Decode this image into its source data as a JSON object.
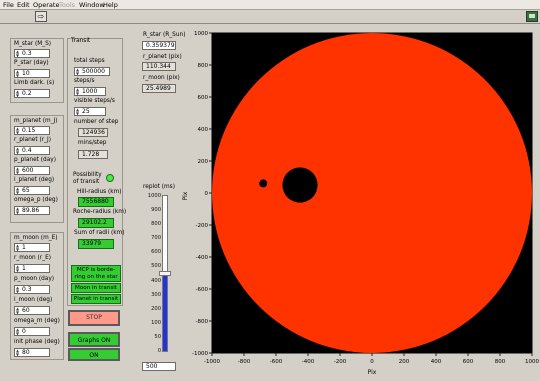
{
  "menu": [
    "File",
    "Edit",
    "Operate",
    "Tools",
    "Window",
    "Help"
  ],
  "star": [
    {
      "label": "M_star (M_S)",
      "value": "0.3"
    },
    {
      "label": "P_star (day)",
      "value": "10"
    },
    {
      "label": "Limb dark. (s)",
      "value": "0.2"
    }
  ],
  "planet": [
    {
      "label": "m_planet (m_J)",
      "value": "0.15"
    },
    {
      "label": "r_planet (r_J)",
      "value": "0.4"
    },
    {
      "label": "p_planet (day)",
      "value": "600"
    },
    {
      "label": "i_planet (deg)",
      "value": "65"
    },
    {
      "label": "omega_p (deg)",
      "value": "89.86"
    }
  ],
  "moon": [
    {
      "label": "m_moon (m_E)",
      "value": "1"
    },
    {
      "label": "r_moon (r_E)",
      "value": "1"
    },
    {
      "label": "p_moon (day)",
      "value": "0.3"
    },
    {
      "label": "i_moon (deg)",
      "value": "60"
    },
    {
      "label": "omega_m (deg)",
      "value": "0"
    },
    {
      "label": "init phase (deg)",
      "value": "80"
    }
  ],
  "transit": {
    "title": "Transit",
    "total_steps_label": "total steps",
    "total_steps": "500000",
    "steps_s_label": "steps/s",
    "steps_s": "1000",
    "visible_label": "visible steps/s",
    "visible": "25",
    "nstep_label": "number of step",
    "nstep": "124936",
    "minstep_label": "mins/step",
    "minstep": "1.728",
    "possibility_label": "Possibility of transit",
    "hill_label": "Hill-radius (km)",
    "hill": "7556880",
    "roche_label": "Roche-radius (km)",
    "roche": "29102.2",
    "sum_label": "Sum of radii (km)",
    "sum": "33979",
    "mcp_btn": "MCP is borde-ring on the star",
    "moon_btn": "Moon in transit",
    "planet_btn": "Planet in transit"
  },
  "controls": {
    "stop": "STOP",
    "graphs": "Graphs ON",
    "on": "ON"
  },
  "readouts": {
    "rstar_label": "R_star (R_Sun)",
    "rstar": "0.359379",
    "rplanet_label": "r_planet (pix)",
    "rplanet": "110.344",
    "rmoon_label": "r_moon (pix)",
    "rmoon": "25.4989"
  },
  "replot": {
    "label": "replot (ms)",
    "value": "500",
    "level": 500,
    "max": 1000,
    "ticks": [
      "1000",
      "900",
      "800",
      "700",
      "600",
      "500",
      "400",
      "300",
      "200",
      "100",
      "50",
      "0"
    ]
  },
  "plot": {
    "ylabel": "Pix",
    "xlabel": "Pix",
    "xticks": [
      "-1000",
      "-800",
      "-600",
      "-400",
      "-200",
      "0",
      "200",
      "400",
      "600",
      "800",
      "1000"
    ],
    "yticks": [
      "1000",
      "800",
      "600",
      "400",
      "200",
      "0",
      "-200",
      "-400",
      "-600",
      "-800",
      "-1000"
    ],
    "star_color": "#ff3300",
    "bg_color": "#000000",
    "star_radius": 1000,
    "planet": {
      "x": -450,
      "y": 50,
      "r": 110
    },
    "moon": {
      "x": -680,
      "y": 60,
      "r": 25
    }
  }
}
